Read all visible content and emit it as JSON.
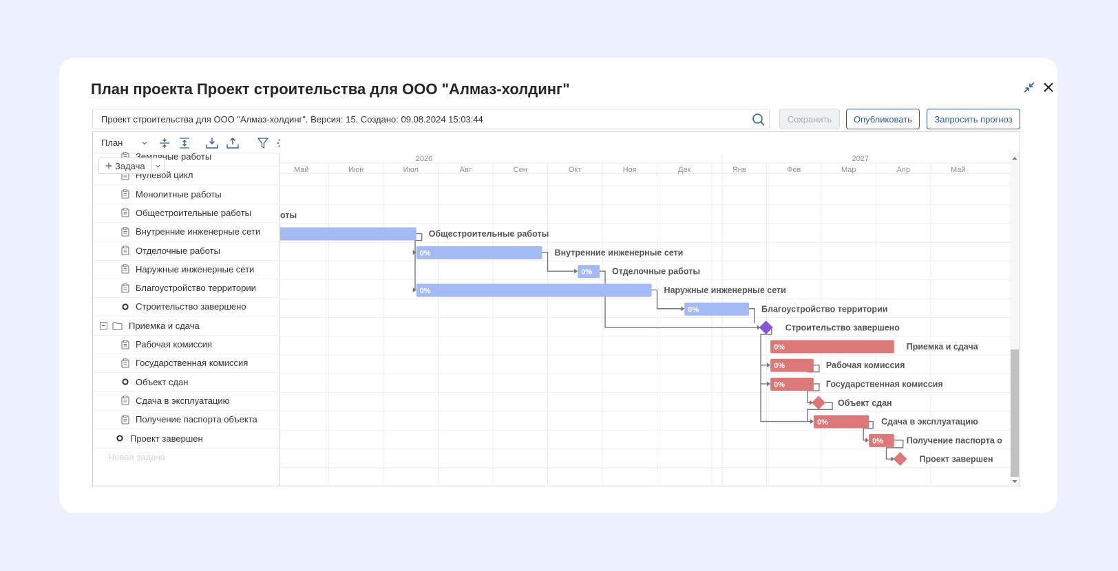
{
  "title": "План проекта Проект строительства для ООО \"Алмаз-холдинг\"",
  "version_info": "Проект строительства для ООО \"Алмаз-холдинг\". Версия: 15. Создано: 09.08.2024 15:03:44",
  "buttons": {
    "save": "Сохранить",
    "publish": "Опубликовать",
    "forecast": "Запросить прогноз"
  },
  "toolbar": {
    "view_select": "План",
    "add_task": "Задача"
  },
  "timeline": {
    "years": [
      "2026",
      "2027"
    ],
    "months": [
      "Май",
      "Июн",
      "Июл",
      "Авг",
      "Сен",
      "Окт",
      "Ноя",
      "Дек",
      "Янв",
      "Фев",
      "Мар",
      "Апр",
      "Май"
    ]
  },
  "tasks": [
    {
      "name": "Земляные работы",
      "kind": "task",
      "level": 2
    },
    {
      "name": "Нулевой цикл",
      "kind": "task",
      "level": 2
    },
    {
      "name": "Монолитные работы",
      "kind": "task",
      "level": 2,
      "bar_label": "оты"
    },
    {
      "name": "Общестроительные работы",
      "kind": "task",
      "level": 2,
      "bar_label": "Общестроительные работы"
    },
    {
      "name": "Внутренние инженерные сети",
      "kind": "task",
      "level": 2,
      "progress": "0%",
      "bar_label": "Внутренние инженерные сети"
    },
    {
      "name": "Отделочные работы",
      "kind": "task",
      "level": 2,
      "progress": "0%",
      "bar_label": "Отделочные работы"
    },
    {
      "name": "Наружные инженерные сети",
      "kind": "task",
      "level": 2,
      "progress": "0%",
      "bar_label": "Наружные инженерные сети"
    },
    {
      "name": "Благоустройство территории",
      "kind": "task",
      "level": 2,
      "progress": "0%",
      "bar_label": "Благоустройство территории"
    },
    {
      "name": "Строительство завершено",
      "kind": "milestone",
      "level": 2,
      "bar_label": "Строительство завершено"
    },
    {
      "name": "Приемка и сдача",
      "kind": "group",
      "level": 1,
      "progress": "0%",
      "bar_label": "Приемка и сдача"
    },
    {
      "name": "Рабочая комиссия",
      "kind": "task",
      "level": 2,
      "progress": "0%",
      "bar_label": "Рабочая комиссия"
    },
    {
      "name": "Государственная комиссия",
      "kind": "task",
      "level": 2,
      "progress": "0%",
      "bar_label": "Государственная комиссия"
    },
    {
      "name": "Объект сдан",
      "kind": "milestone",
      "level": 2,
      "bar_label": "Объект сдан"
    },
    {
      "name": "Сдача в эксплуатацию",
      "kind": "task",
      "level": 2,
      "progress": "0%",
      "bar_label": "Сдача в эксплуатацию"
    },
    {
      "name": "Получение паспорта объекта",
      "kind": "task",
      "level": 2,
      "progress": "0%",
      "bar_label": "Получение паспорта о"
    },
    {
      "name": "Проект завершен",
      "kind": "milestone",
      "level": 1,
      "bar_label": "Проект завершен"
    }
  ],
  "new_task_placeholder": "Новая задача",
  "colors": {
    "blue_bar": "#a4baf4",
    "red_bar": "#dc7878",
    "milestone_purple": "#8459d6",
    "milestone_red": "#dc7878",
    "link": "#777777",
    "accent": "#2f5e9e"
  }
}
